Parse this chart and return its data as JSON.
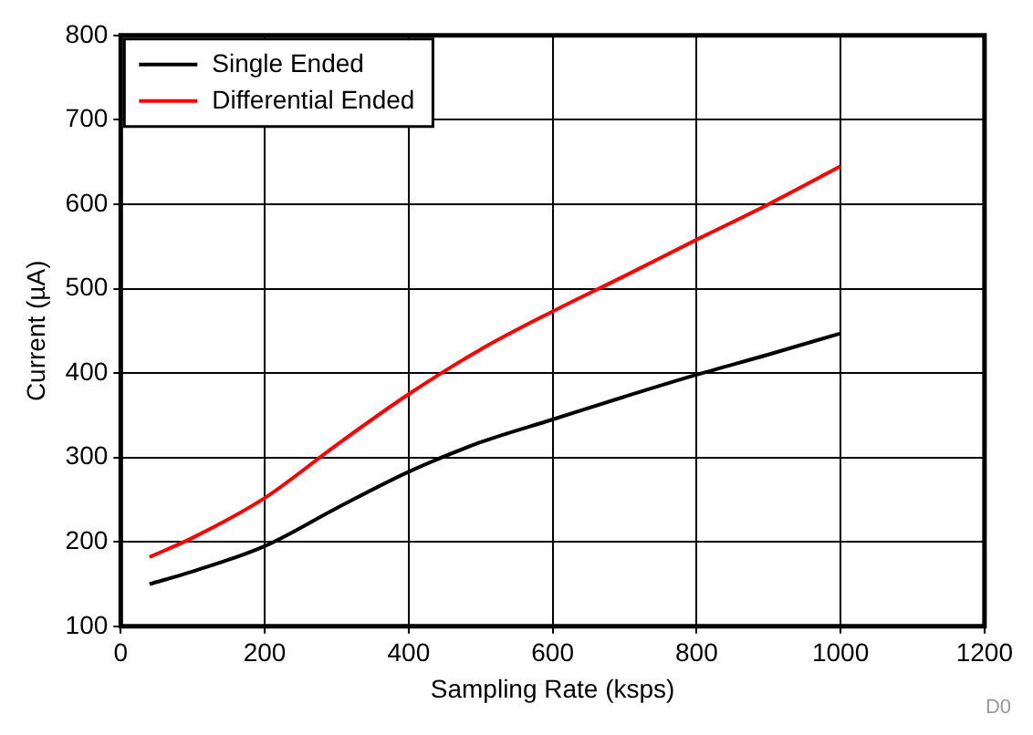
{
  "chart_data": {
    "type": "line",
    "xlabel": "Sampling Rate (ksps)",
    "ylabel": "Current (µA)",
    "xlim": [
      0,
      1200
    ],
    "xticks": [
      0,
      200,
      400,
      600,
      800,
      1000,
      1200
    ],
    "ylim": [
      100,
      800
    ],
    "yticks": [
      100,
      200,
      300,
      400,
      500,
      600,
      700,
      800
    ],
    "grid": true,
    "legend": "top left",
    "marker": "none",
    "line_style": "solid",
    "annotations": [
      "D0"
    ],
    "series": [
      {
        "name": "Single Ended",
        "color": "#000000",
        "x": [
          40,
          100,
          200,
          300,
          400,
          500,
          600,
          700,
          800,
          900,
          1000
        ],
        "values": [
          150,
          165,
          195,
          240,
          283,
          318,
          345,
          372,
          398,
          422,
          447
        ]
      },
      {
        "name": "Differential Ended",
        "color": "#ff0000",
        "x": [
          40,
          100,
          200,
          300,
          400,
          500,
          600,
          700,
          800,
          900,
          1000
        ],
        "values": [
          182,
          205,
          252,
          315,
          375,
          428,
          473,
          515,
          558,
          600,
          645
        ]
      }
    ]
  }
}
